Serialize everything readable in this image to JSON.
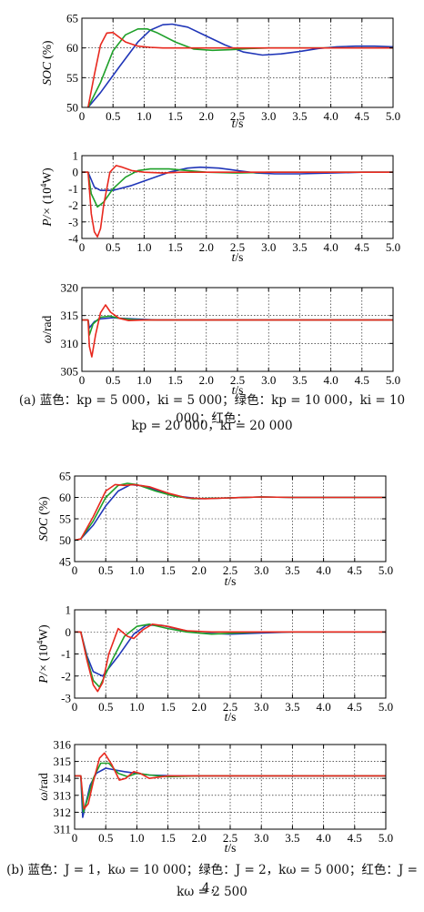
{
  "chart_data": [
    {
      "type": "line",
      "ylabel": "SOC (%)",
      "xlabel": "t/s",
      "xlim": [
        0,
        5
      ],
      "ylim": [
        50,
        65
      ],
      "xticks": [
        "0",
        "0.5",
        "1.0",
        "1.5",
        "2.0",
        "2.5",
        "3.0",
        "3.5",
        "4.0",
        "4.5",
        "5.0"
      ],
      "yticks": [
        "50",
        "55",
        "60",
        "65"
      ],
      "grid": true,
      "series": [
        {
          "color": "#2036b8",
          "x": [
            0.1,
            0.3,
            0.6,
            0.9,
            1.1,
            1.3,
            1.45,
            1.7,
            2.0,
            2.3,
            2.6,
            2.9,
            3.2,
            3.5,
            3.8,
            4.1,
            4.4,
            4.7,
            5.0
          ],
          "y": [
            50,
            52.5,
            56.8,
            61,
            63,
            63.9,
            64,
            63.5,
            62,
            60.5,
            59.3,
            58.8,
            59,
            59.4,
            59.9,
            60.2,
            60.3,
            60.3,
            60.2
          ]
        },
        {
          "color": "#1fa02a",
          "x": [
            0.1,
            0.3,
            0.5,
            0.7,
            0.9,
            1.05,
            1.2,
            1.5,
            1.8,
            2.1,
            2.4,
            2.7,
            3.0,
            3.5,
            4.0,
            4.5,
            5.0
          ],
          "y": [
            50,
            54.2,
            59.5,
            62.2,
            63.2,
            63.2,
            62.6,
            61,
            59.8,
            59.6,
            59.7,
            59.9,
            60,
            60,
            60,
            60,
            60
          ]
        },
        {
          "color": "#e8281e",
          "x": [
            0.1,
            0.2,
            0.3,
            0.4,
            0.5,
            0.6,
            0.7,
            0.9,
            1.1,
            1.3,
            1.6,
            2.0,
            2.5,
            3.0,
            4.0,
            5.0
          ],
          "y": [
            50,
            55.5,
            60.5,
            62.5,
            62.6,
            61.8,
            61,
            60.3,
            60.1,
            60,
            60,
            60,
            60,
            60,
            60,
            60
          ]
        }
      ]
    },
    {
      "type": "line",
      "ylabel": "P/(× 10⁴W)",
      "xlabel": "t/s",
      "xlim": [
        0,
        5
      ],
      "ylim": [
        -4,
        1
      ],
      "xticks": [
        "0",
        "0.5",
        "1.0",
        "1.5",
        "2.0",
        "2.5",
        "3.0",
        "3.5",
        "4.0",
        "4.5",
        "5.0"
      ],
      "yticks": [
        "-4",
        "-3",
        "-2",
        "-1",
        "0",
        "1"
      ],
      "grid": true,
      "series": [
        {
          "color": "#2036b8",
          "x": [
            0,
            0.1,
            0.2,
            0.3,
            0.5,
            0.8,
            1.1,
            1.4,
            1.7,
            1.9,
            2.2,
            2.5,
            2.8,
            3.1,
            3.5,
            4.0,
            4.5,
            5.0
          ],
          "y": [
            0,
            0,
            -0.9,
            -1.1,
            -1.1,
            -0.8,
            -0.4,
            0,
            0.25,
            0.3,
            0.25,
            0.1,
            -0.05,
            -0.1,
            -0.1,
            -0.05,
            0,
            0
          ]
        },
        {
          "color": "#1fa02a",
          "x": [
            0,
            0.1,
            0.15,
            0.25,
            0.35,
            0.5,
            0.7,
            0.9,
            1.1,
            1.4,
            1.7,
            2.0,
            2.5,
            3.0,
            4.0,
            5.0
          ],
          "y": [
            0,
            0,
            -1.3,
            -2.1,
            -1.8,
            -1,
            -0.3,
            0.1,
            0.2,
            0.2,
            0.1,
            0,
            -0.05,
            0,
            0,
            0
          ]
        },
        {
          "color": "#e8281e",
          "x": [
            0,
            0.1,
            0.15,
            0.2,
            0.25,
            0.3,
            0.35,
            0.45,
            0.55,
            0.65,
            0.8,
            1.0,
            1.3,
            1.6,
            2.0,
            3.0,
            5.0
          ],
          "y": [
            0,
            0,
            -2.5,
            -3.6,
            -3.9,
            -3.4,
            -2,
            0,
            0.4,
            0.3,
            0.1,
            0,
            -0.05,
            0,
            0,
            0,
            0
          ]
        }
      ]
    },
    {
      "type": "line",
      "ylabel": "ω/rad",
      "xlabel": "t/s",
      "xlim": [
        0,
        5
      ],
      "ylim": [
        305,
        320
      ],
      "xticks": [
        "0",
        "0.5",
        "1.0",
        "1.5",
        "2.0",
        "2.5",
        "3.0",
        "3.5",
        "4.0",
        "4.5",
        "5.0"
      ],
      "yticks": [
        "305",
        "310",
        "315",
        "320"
      ],
      "grid": true,
      "series": [
        {
          "color": "#2036b8",
          "x": [
            0,
            0.1,
            0.12,
            0.2,
            0.3,
            0.5,
            0.8,
            1.2,
            5.0
          ],
          "y": [
            314.2,
            314.2,
            312.8,
            313.9,
            314.4,
            314.6,
            314.4,
            314.2,
            314.2
          ]
        },
        {
          "color": "#1fa02a",
          "x": [
            0,
            0.1,
            0.12,
            0.18,
            0.3,
            0.45,
            0.6,
            0.8,
            1.0,
            5.0
          ],
          "y": [
            314.2,
            314.2,
            311.5,
            313.5,
            314.7,
            314.9,
            314.5,
            314.3,
            314.2,
            314.2
          ]
        },
        {
          "color": "#e8281e",
          "x": [
            0,
            0.1,
            0.12,
            0.16,
            0.22,
            0.3,
            0.38,
            0.46,
            0.6,
            0.75,
            1.0,
            5.0
          ],
          "y": [
            314.2,
            314.2,
            309.5,
            307.6,
            311.5,
            315.5,
            316.9,
            315.6,
            314.5,
            314.1,
            314.2,
            314.2
          ]
        }
      ]
    },
    {
      "type": "line",
      "ylabel": "SOC (%)",
      "xlabel": "t/s",
      "xlim": [
        0,
        5
      ],
      "ylim": [
        45,
        65
      ],
      "xticks": [
        "0",
        "0.5",
        "1.0",
        "1.5",
        "2.0",
        "2.5",
        "3.0",
        "3.5",
        "4.0",
        "4.5",
        "5.0"
      ],
      "yticks": [
        "45",
        "50",
        "55",
        "60",
        "65"
      ],
      "grid": true,
      "series": [
        {
          "color": "#2036b8",
          "x": [
            0,
            0.1,
            0.3,
            0.5,
            0.7,
            0.9,
            1.1,
            1.4,
            1.7,
            2.0,
            2.5,
            3.0,
            3.5,
            4.0,
            5.0
          ],
          "y": [
            50,
            50.3,
            53.5,
            58,
            61.5,
            63,
            62.7,
            61.3,
            60.2,
            59.7,
            59.9,
            60.1,
            60,
            60,
            60
          ]
        },
        {
          "color": "#1fa02a",
          "x": [
            0,
            0.1,
            0.3,
            0.5,
            0.7,
            0.85,
            1.0,
            1.3,
            1.6,
            1.9,
            2.5,
            3.0,
            3.5,
            5.0
          ],
          "y": [
            50,
            50.3,
            54.5,
            60,
            62.8,
            63.3,
            63,
            61.5,
            60.3,
            59.7,
            59.9,
            60.1,
            60,
            60
          ]
        },
        {
          "color": "#e8281e",
          "x": [
            0,
            0.1,
            0.3,
            0.5,
            0.65,
            0.8,
            0.95,
            1.2,
            1.5,
            1.8,
            2.1,
            2.5,
            3.0,
            3.5,
            5.0
          ],
          "y": [
            50,
            50.3,
            55.5,
            61.5,
            63,
            62.8,
            63,
            62.5,
            61,
            59.9,
            59.7,
            59.9,
            60.1,
            60,
            60
          ]
        }
      ]
    },
    {
      "type": "line",
      "ylabel": "P/(× 10⁴W)",
      "xlabel": "t/s",
      "xlim": [
        0,
        5
      ],
      "ylim": [
        -3,
        1
      ],
      "xticks": [
        "0",
        "0.5",
        "1.0",
        "1.5",
        "2.0",
        "2.5",
        "3.0",
        "3.5",
        "4.0",
        "4.5",
        "5.0"
      ],
      "yticks": [
        "-3",
        "-2",
        "-1",
        "0",
        "1"
      ],
      "grid": true,
      "series": [
        {
          "color": "#2036b8",
          "x": [
            0,
            0.1,
            0.2,
            0.3,
            0.45,
            0.7,
            0.95,
            1.15,
            1.4,
            1.7,
            2.0,
            2.5,
            3.0,
            3.5,
            5.0
          ],
          "y": [
            0,
            0,
            -1.1,
            -1.8,
            -2,
            -1.1,
            -0.1,
            0.3,
            0.3,
            0.1,
            -0.05,
            -0.1,
            -0.05,
            0,
            0
          ]
        },
        {
          "color": "#1fa02a",
          "x": [
            0,
            0.1,
            0.2,
            0.3,
            0.4,
            0.6,
            0.8,
            1.0,
            1.2,
            1.5,
            1.8,
            2.2,
            2.6,
            3.0,
            5.0
          ],
          "y": [
            0,
            0,
            -1.2,
            -2.2,
            -2.5,
            -1.3,
            -0.2,
            0.25,
            0.35,
            0.15,
            0,
            -0.1,
            -0.05,
            0,
            0
          ]
        },
        {
          "color": "#e8281e",
          "x": [
            0,
            0.1,
            0.2,
            0.3,
            0.37,
            0.45,
            0.55,
            0.7,
            0.85,
            0.95,
            1.1,
            1.25,
            1.5,
            1.8,
            2.2,
            3.0,
            5.0
          ],
          "y": [
            0,
            0,
            -1.3,
            -2.4,
            -2.7,
            -2.3,
            -1,
            0.15,
            -0.2,
            -0.3,
            0.1,
            0.35,
            0.25,
            0.05,
            0,
            0,
            0
          ]
        }
      ]
    },
    {
      "type": "line",
      "ylabel": "ω/rad",
      "xlabel": "t/s",
      "xlim": [
        0,
        5
      ],
      "ylim": [
        311,
        316
      ],
      "xticks": [
        "0",
        "0.5",
        "1.0",
        "1.5",
        "2.0",
        "2.5",
        "3.0",
        "3.5",
        "4.0",
        "4.5",
        "5.0"
      ],
      "yticks": [
        "311",
        "312",
        "313",
        "314",
        "315",
        "316"
      ],
      "grid": true,
      "series": [
        {
          "color": "#2036b8",
          "x": [
            0,
            0.1,
            0.13,
            0.18,
            0.25,
            0.35,
            0.5,
            0.8,
            1.2,
            1.6,
            2.0,
            5.0
          ],
          "y": [
            314.15,
            314.15,
            311.7,
            312.5,
            313.6,
            314.3,
            314.6,
            314.4,
            314.2,
            314.15,
            314.15,
            314.15
          ]
        },
        {
          "color": "#1fa02a",
          "x": [
            0,
            0.1,
            0.14,
            0.2,
            0.3,
            0.42,
            0.55,
            0.7,
            0.85,
            1.0,
            1.2,
            1.5,
            2.0,
            5.0
          ],
          "y": [
            314.15,
            314.15,
            312,
            312.7,
            314,
            314.9,
            314.9,
            314.3,
            314.1,
            314.3,
            314.2,
            314.1,
            314.15,
            314.15
          ]
        },
        {
          "color": "#e8281e",
          "x": [
            0,
            0.1,
            0.15,
            0.22,
            0.3,
            0.4,
            0.48,
            0.6,
            0.72,
            0.82,
            0.95,
            1.05,
            1.2,
            1.5,
            2.0,
            5.0
          ],
          "y": [
            314.15,
            314.15,
            312.2,
            312.5,
            313.8,
            315.2,
            315.5,
            314.8,
            313.9,
            314,
            314.4,
            314.3,
            314,
            314.15,
            314.15,
            314.15
          ]
        }
      ]
    }
  ],
  "captions": {
    "a_line1": "(a) 蓝色：kp = 5 000，ki = 5 000；绿色：kp = 10 000，ki = 10 000；红色：",
    "a_line2": "kp = 20 000，ki = 20 000",
    "b_line1": "(b) 蓝色：J = 1，kω = 10 000；绿色：J = 2，kω = 5 000；红色：J = 4，",
    "b_line2": "kω = 2 500"
  }
}
